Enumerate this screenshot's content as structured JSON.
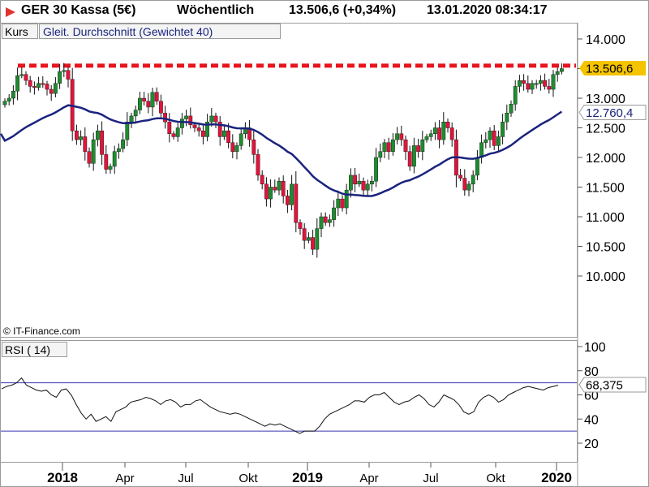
{
  "header": {
    "instrument": "GER 30 Kassa (5€)",
    "interval": "Wöchentlich",
    "quote": "13.506,6 (+0,34%)",
    "datetime": "13.01.2020 08:34:17",
    "icon": "triangle-right-icon",
    "icon_color": "#e0342f"
  },
  "legend": {
    "kurs_label": "Kurs",
    "ma_label": "Gleit. Durchschnitt (Gewichtet 40)",
    "rsi_label": "RSI ( 14)"
  },
  "watermark": "© IT-Finance.com",
  "price_axis": {
    "ticks": [
      "14.000",
      "13.500",
      "13.000",
      "12.500",
      "12.000",
      "11.500",
      "11.000",
      "10.500",
      "10.000"
    ]
  },
  "rsi_axis": {
    "ticks": [
      "100",
      "80",
      "60",
      "40",
      "20"
    ]
  },
  "time_axis": {
    "ticks": [
      "2018",
      "Apr",
      "Jul",
      "Okt",
      "2019",
      "Apr",
      "Jul",
      "Okt",
      "2020"
    ]
  },
  "current": {
    "price_label": "13.506,6",
    "ma_label": "12.760,4",
    "rsi_label": "68,375"
  },
  "colors": {
    "up": "#1e8c2e",
    "down": "#e0143c",
    "ma_line": "#1a237e",
    "resistance": "#e8141c",
    "price_flag": "#f5c400",
    "rsi_bound": "#3838b0",
    "grid_border": "#9a9a9a"
  },
  "chart_data": [
    {
      "type": "candlestick",
      "title": "GER 30 Kassa (5€)",
      "interval": "Wöchentlich",
      "ylim": [
        9700,
        14300
      ],
      "resistance_level": 13550,
      "ma_legend": "Gleit. Durchschnitt (Gewichtet 40)",
      "closes": [
        12950,
        13000,
        13120,
        13380,
        13400,
        13300,
        13200,
        13180,
        13250,
        13240,
        13150,
        13080,
        13250,
        13450,
        13470,
        13320,
        12450,
        12300,
        12350,
        12100,
        11900,
        12300,
        12450,
        12050,
        11800,
        11850,
        12100,
        12150,
        12300,
        12600,
        12700,
        12800,
        13000,
        12950,
        12850,
        13100,
        12950,
        12750,
        12600,
        12400,
        12350,
        12500,
        12650,
        12700,
        12550,
        12500,
        12450,
        12350,
        12600,
        12700,
        12600,
        12350,
        12450,
        12250,
        12100,
        12200,
        12400,
        12500,
        12300,
        12050,
        11700,
        11550,
        11300,
        11500,
        11450,
        11600,
        11350,
        11200,
        11550,
        10900,
        10800,
        10600,
        10650,
        10450,
        10800,
        11000,
        10900,
        10950,
        11150,
        11300,
        11150,
        11450,
        11700,
        11550,
        11600,
        11450,
        11550,
        11600,
        12000,
        12100,
        12250,
        12100,
        12300,
        12400,
        12300,
        12100,
        11850,
        12200,
        12100,
        12300,
        12350,
        12400,
        12500,
        12300,
        12600,
        12500,
        12300,
        11700,
        11650,
        11450,
        11550,
        11700,
        12000,
        12250,
        12300,
        12450,
        12200,
        12350,
        12600,
        12750,
        12900,
        13200,
        13300,
        13250,
        13150,
        13250,
        13250,
        13300,
        13200,
        13150,
        13400,
        13450,
        13500
      ]
    },
    {
      "type": "line",
      "name": "Gleit. Durchschnitt (Gewichtet 40)",
      "last": 12760.4
    },
    {
      "type": "line",
      "name": "RSI ( 14)",
      "ylim": [
        0,
        100
      ],
      "bands": [
        30,
        70
      ],
      "last": 68.375,
      "values": [
        65,
        67,
        68,
        70,
        74,
        68,
        66,
        64,
        63,
        64,
        60,
        58,
        64,
        65,
        60,
        52,
        45,
        40,
        44,
        38,
        40,
        42,
        38,
        46,
        48,
        50,
        54,
        55,
        56,
        58,
        57,
        55,
        52,
        55,
        56,
        54,
        50,
        52,
        52,
        55,
        56,
        53,
        50,
        48,
        46,
        45,
        44,
        45,
        44,
        42,
        40,
        38,
        36,
        34,
        36,
        35,
        36,
        34,
        32,
        30,
        28,
        30,
        30,
        30,
        34,
        40,
        44,
        46,
        48,
        50,
        52,
        55,
        55,
        54,
        58,
        60,
        60,
        62,
        58,
        54,
        52,
        54,
        55,
        58,
        60,
        57,
        52,
        50,
        54,
        60,
        58,
        56,
        52,
        46,
        44,
        46,
        54,
        58,
        60,
        58,
        54,
        56,
        60,
        62,
        64,
        66,
        67,
        66,
        65,
        64,
        66,
        67,
        68
      ]
    }
  ]
}
